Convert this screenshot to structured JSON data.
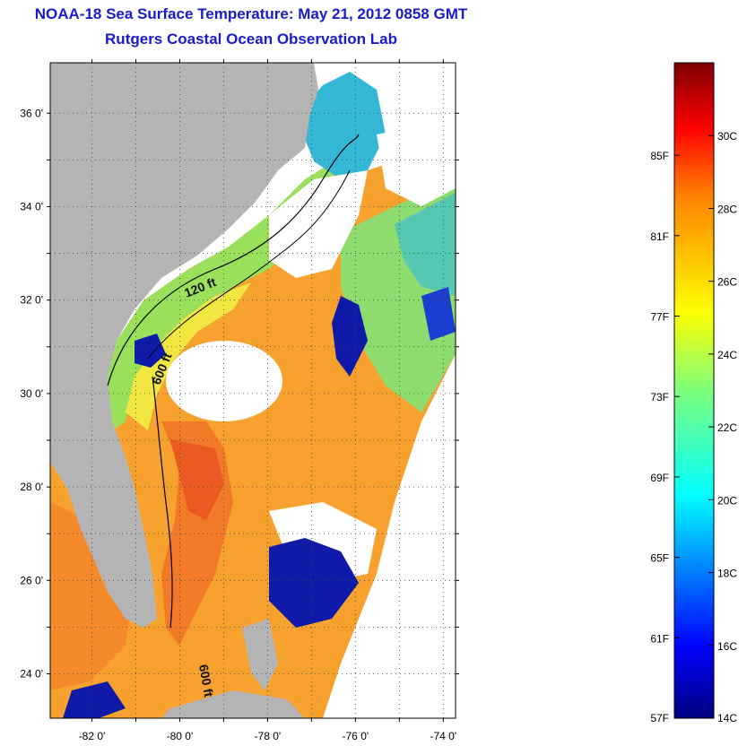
{
  "title_line1": "NOAA-18 Sea Surface Temperature:  May 21, 2012 0858 GMT",
  "title_line2": "Rutgers Coastal Ocean Observation Lab",
  "colors": {
    "title": "#1a1acc",
    "land": "#b4b4b4",
    "cloud": "#ffffff"
  },
  "lat_ticks": [
    {
      "label": "36 0'",
      "value": 36
    },
    {
      "label": "34 0'",
      "value": 34
    },
    {
      "label": "32 0'",
      "value": 32
    },
    {
      "label": "30 0'",
      "value": 30
    },
    {
      "label": "28 0'",
      "value": 28
    },
    {
      "label": "26 0'",
      "value": 26
    },
    {
      "label": "24 0'",
      "value": 24
    }
  ],
  "lon_ticks": [
    {
      "label": "-82 0'",
      "value": -82
    },
    {
      "label": "-80 0'",
      "value": -80
    },
    {
      "label": "-78 0'",
      "value": -78
    },
    {
      "label": "-76 0'",
      "value": -76
    },
    {
      "label": "-74 0'",
      "value": -74
    }
  ],
  "contour_labels": [
    "120 ft",
    "600 ft",
    "600 ft"
  ],
  "colorbar": {
    "colormap": "jet",
    "fahrenheit_ticks": [
      "85F",
      "81F",
      "77F",
      "73F",
      "69F",
      "65F",
      "61F",
      "57F"
    ],
    "celsius_ticks": [
      "30C",
      "28C",
      "26C",
      "24C",
      "22C",
      "20C",
      "18C",
      "16C",
      "14C"
    ]
  }
}
